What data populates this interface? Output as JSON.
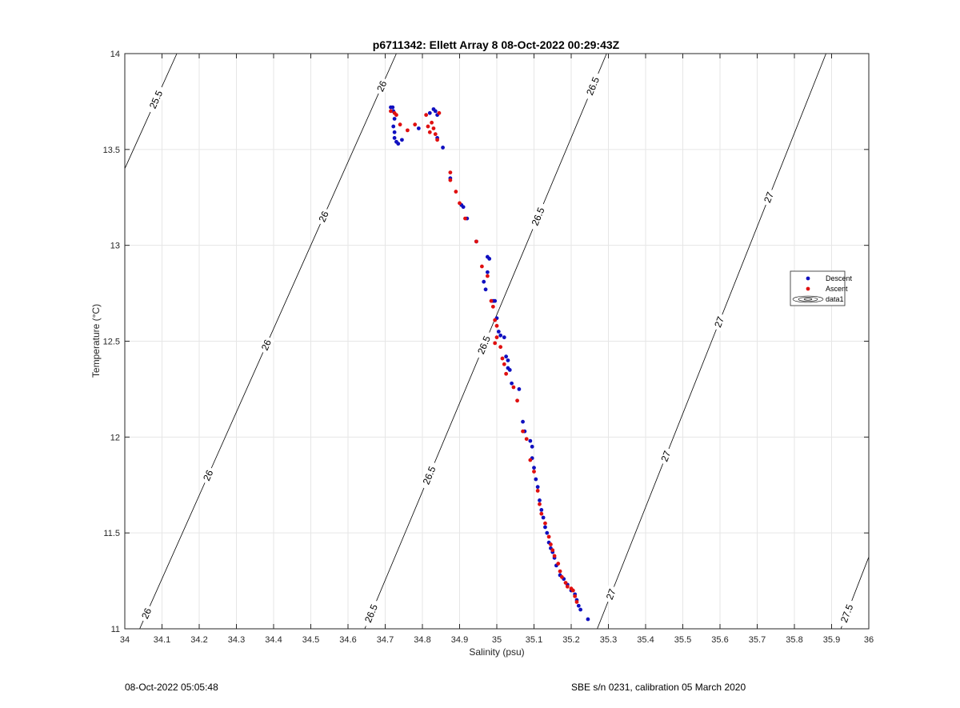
{
  "chart_data": {
    "type": "scatter",
    "title": "p6711342: Ellett Array 8 08-Oct-2022 00:29:43Z",
    "xlabel": "Salinity (psu)",
    "ylabel": "Temperature (°C)",
    "xlim": [
      34,
      36
    ],
    "ylim": [
      11,
      14
    ],
    "xticks": [
      "34",
      "34.1",
      "34.2",
      "34.3",
      "34.4",
      "34.5",
      "34.6",
      "34.7",
      "34.8",
      "34.9",
      "35",
      "35.1",
      "35.2",
      "35.3",
      "35.4",
      "35.5",
      "35.6",
      "35.7",
      "35.8",
      "35.9",
      "36"
    ],
    "yticks": [
      "11",
      "11.5",
      "12",
      "12.5",
      "13",
      "13.5",
      "14"
    ],
    "grid": true,
    "legend_position": "right",
    "legend": [
      "Descent",
      "Ascent",
      "data1"
    ],
    "colors": {
      "descent": "#1010c0",
      "ascent": "#e01010",
      "contour": "#000000",
      "grid": "#e6e6e6"
    },
    "series": [
      {
        "name": "Descent",
        "points": [
          [
            34.715,
            13.72
          ],
          [
            34.72,
            13.72
          ],
          [
            34.722,
            13.7
          ],
          [
            34.725,
            13.66
          ],
          [
            34.722,
            13.62
          ],
          [
            34.725,
            13.59
          ],
          [
            34.725,
            13.56
          ],
          [
            34.73,
            13.54
          ],
          [
            34.735,
            13.53
          ],
          [
            34.745,
            13.55
          ],
          [
            34.79,
            13.61
          ],
          [
            34.82,
            13.69
          ],
          [
            34.83,
            13.71
          ],
          [
            34.835,
            13.7
          ],
          [
            34.84,
            13.68
          ],
          [
            34.84,
            13.56
          ],
          [
            34.855,
            13.51
          ],
          [
            34.875,
            13.35
          ],
          [
            34.905,
            13.21
          ],
          [
            34.91,
            13.2
          ],
          [
            34.92,
            13.14
          ],
          [
            34.945,
            13.02
          ],
          [
            34.975,
            12.94
          ],
          [
            34.98,
            12.93
          ],
          [
            34.975,
            12.86
          ],
          [
            34.965,
            12.81
          ],
          [
            34.97,
            12.77
          ],
          [
            34.99,
            12.71
          ],
          [
            34.995,
            12.71
          ],
          [
            35.0,
            12.62
          ],
          [
            35.005,
            12.55
          ],
          [
            35.01,
            12.53
          ],
          [
            35.02,
            12.52
          ],
          [
            35.025,
            12.42
          ],
          [
            35.03,
            12.4
          ],
          [
            35.03,
            12.36
          ],
          [
            35.035,
            12.35
          ],
          [
            35.04,
            12.28
          ],
          [
            35.06,
            12.25
          ],
          [
            35.07,
            12.08
          ],
          [
            35.075,
            12.03
          ],
          [
            35.09,
            11.98
          ],
          [
            35.095,
            11.95
          ],
          [
            35.095,
            11.89
          ],
          [
            35.1,
            11.84
          ],
          [
            35.105,
            11.78
          ],
          [
            35.11,
            11.74
          ],
          [
            35.115,
            11.67
          ],
          [
            35.12,
            11.62
          ],
          [
            35.125,
            11.58
          ],
          [
            35.13,
            11.53
          ],
          [
            35.135,
            11.5
          ],
          [
            35.14,
            11.45
          ],
          [
            35.145,
            11.42
          ],
          [
            35.15,
            11.4
          ],
          [
            35.155,
            11.37
          ],
          [
            35.16,
            11.33
          ],
          [
            35.17,
            11.28
          ],
          [
            35.18,
            11.26
          ],
          [
            35.19,
            11.23
          ],
          [
            35.2,
            11.2
          ],
          [
            35.21,
            11.18
          ],
          [
            35.215,
            11.15
          ],
          [
            35.22,
            11.12
          ],
          [
            35.225,
            11.1
          ],
          [
            35.245,
            11.05
          ]
        ]
      },
      {
        "name": "Ascent",
        "points": [
          [
            34.715,
            13.7
          ],
          [
            34.725,
            13.69
          ],
          [
            34.73,
            13.68
          ],
          [
            34.74,
            13.63
          ],
          [
            34.76,
            13.6
          ],
          [
            34.78,
            13.63
          ],
          [
            34.81,
            13.68
          ],
          [
            34.815,
            13.62
          ],
          [
            34.82,
            13.59
          ],
          [
            34.825,
            13.64
          ],
          [
            34.83,
            13.61
          ],
          [
            34.835,
            13.58
          ],
          [
            34.84,
            13.55
          ],
          [
            34.845,
            13.69
          ],
          [
            34.875,
            13.38
          ],
          [
            34.875,
            13.34
          ],
          [
            34.89,
            13.28
          ],
          [
            34.9,
            13.22
          ],
          [
            34.915,
            13.14
          ],
          [
            34.945,
            13.02
          ],
          [
            34.96,
            12.89
          ],
          [
            34.975,
            12.84
          ],
          [
            34.985,
            12.71
          ],
          [
            34.99,
            12.68
          ],
          [
            34.995,
            12.61
          ],
          [
            35.0,
            12.58
          ],
          [
            35.0,
            12.52
          ],
          [
            34.995,
            12.49
          ],
          [
            35.01,
            12.47
          ],
          [
            35.015,
            12.41
          ],
          [
            35.02,
            12.38
          ],
          [
            35.025,
            12.33
          ],
          [
            35.045,
            12.26
          ],
          [
            35.055,
            12.19
          ],
          [
            35.07,
            12.03
          ],
          [
            35.08,
            11.99
          ],
          [
            35.09,
            11.88
          ],
          [
            35.1,
            11.82
          ],
          [
            35.11,
            11.72
          ],
          [
            35.115,
            11.65
          ],
          [
            35.12,
            11.6
          ],
          [
            35.13,
            11.55
          ],
          [
            35.14,
            11.48
          ],
          [
            35.145,
            11.44
          ],
          [
            35.15,
            11.41
          ],
          [
            35.155,
            11.38
          ],
          [
            35.165,
            11.34
          ],
          [
            35.17,
            11.3
          ],
          [
            35.175,
            11.27
          ],
          [
            35.185,
            11.24
          ],
          [
            35.19,
            11.22
          ],
          [
            35.2,
            11.21
          ],
          [
            35.205,
            11.2
          ],
          [
            35.21,
            11.17
          ],
          [
            35.215,
            11.14
          ]
        ]
      }
    ],
    "isopycnals": [
      {
        "label": "25.5",
        "s_at_t11": 33.44,
        "slope": 0.2333,
        "label_ys": [
          13.76
        ]
      },
      {
        "label": "26",
        "s_at_t11": 34.04,
        "slope": 0.23,
        "label_ys": [
          11.08,
          11.8,
          12.48,
          13.15,
          13.83
        ]
      },
      {
        "label": "26.5",
        "s_at_t11": 34.645,
        "slope": 0.2167,
        "label_ys": [
          11.08,
          11.8,
          12.48,
          13.15,
          13.83
        ]
      },
      {
        "label": "27",
        "s_at_t11": 35.27,
        "slope": 0.205,
        "label_ys": [
          11.18,
          11.9,
          12.6,
          13.25
        ]
      },
      {
        "label": "27.5",
        "s_at_t11": 35.925,
        "slope": 0.2,
        "label_ys": [
          11.08
        ]
      }
    ]
  },
  "footer": {
    "left": "08-Oct-2022 05:05:48",
    "right": "SBE s/n 0231, calibration 05 March 2020"
  }
}
